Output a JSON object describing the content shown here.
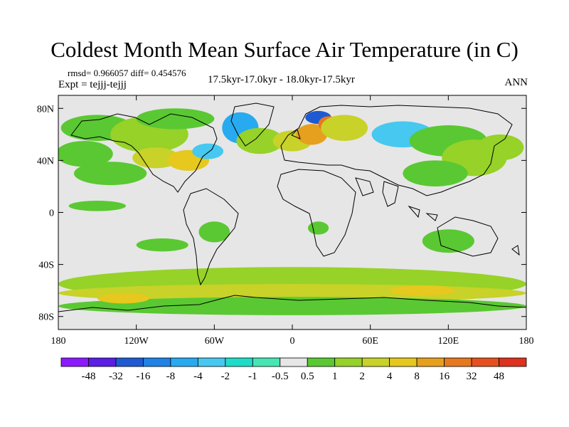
{
  "header": {
    "title": "Coldest Month Mean Surface Air Temperature (in C)",
    "stats": "rmsd= 0.966057 diff= 0.454576",
    "experiment": "Expt = tejjj-tejjj",
    "period": "17.5kyr-17.0kyr - 18.0kyr-17.5kyr",
    "season": "ANN"
  },
  "axes": {
    "lat_ticks": [
      {
        "label": "80N",
        "value": 80
      },
      {
        "label": "40N",
        "value": 40
      },
      {
        "label": "0",
        "value": 0
      },
      {
        "label": "40S",
        "value": -40
      },
      {
        "label": "80S",
        "value": -80
      }
    ],
    "lon_ticks": [
      {
        "label": "180",
        "value": -180
      },
      {
        "label": "120W",
        "value": -120
      },
      {
        "label": "60W",
        "value": -60
      },
      {
        "label": "0",
        "value": 0
      },
      {
        "label": "60E",
        "value": 60
      },
      {
        "label": "120E",
        "value": 120
      },
      {
        "label": "180",
        "value": 180
      }
    ],
    "lat_range": [
      -90,
      90
    ],
    "lon_range": [
      -180,
      180
    ]
  },
  "legend": {
    "colors": [
      "#8c1aff",
      "#5a1ee6",
      "#1e5ad2",
      "#1e82e6",
      "#28aaf0",
      "#46c8f0",
      "#1edcc8",
      "#46e6b4",
      "#e6e6e6",
      "#5ac832",
      "#96d228",
      "#c8d228",
      "#e6c81e",
      "#e6a01e",
      "#e6781e",
      "#e6501e",
      "#dc321e"
    ],
    "labels": [
      "-48",
      "-32",
      "-16",
      "-8",
      "-4",
      "-2",
      "-1",
      "-0.5",
      "0.5",
      "1",
      "2",
      "4",
      "8",
      "16",
      "32",
      "48"
    ]
  },
  "map": {
    "background_color": "#e6e6e6",
    "coastline_color": "#000000",
    "anomaly_regions": [
      {
        "lon": -150,
        "lat": 65,
        "rx": 28,
        "ry": 10,
        "color": "#5ac832"
      },
      {
        "lon": -110,
        "lat": 60,
        "rx": 30,
        "ry": 14,
        "color": "#96d228"
      },
      {
        "lon": -90,
        "lat": 72,
        "rx": 30,
        "ry": 8,
        "color": "#5ac832"
      },
      {
        "lon": -160,
        "lat": 45,
        "rx": 22,
        "ry": 10,
        "color": "#5ac832"
      },
      {
        "lon": -140,
        "lat": 30,
        "rx": 28,
        "ry": 9,
        "color": "#5ac832"
      },
      {
        "lon": -105,
        "lat": 42,
        "rx": 18,
        "ry": 8,
        "color": "#c8d228"
      },
      {
        "lon": -80,
        "lat": 40,
        "rx": 16,
        "ry": 8,
        "color": "#e6c81e"
      },
      {
        "lon": -65,
        "lat": 47,
        "rx": 12,
        "ry": 6,
        "color": "#46c8f0"
      },
      {
        "lon": -40,
        "lat": 65,
        "rx": 14,
        "ry": 12,
        "color": "#28aaf0"
      },
      {
        "lon": -25,
        "lat": 55,
        "rx": 18,
        "ry": 10,
        "color": "#96d228"
      },
      {
        "lon": 0,
        "lat": 55,
        "rx": 15,
        "ry": 8,
        "color": "#c8d228"
      },
      {
        "lon": 15,
        "lat": 60,
        "rx": 12,
        "ry": 8,
        "color": "#e6a01e"
      },
      {
        "lon": 20,
        "lat": 73,
        "rx": 10,
        "ry": 5,
        "color": "#1e5ad2"
      },
      {
        "lon": 28,
        "lat": 68,
        "rx": 8,
        "ry": 6,
        "color": "#e6781e"
      },
      {
        "lon": 40,
        "lat": 65,
        "rx": 18,
        "ry": 10,
        "color": "#c8d228"
      },
      {
        "lon": 85,
        "lat": 60,
        "rx": 24,
        "ry": 10,
        "color": "#46c8f0"
      },
      {
        "lon": 120,
        "lat": 55,
        "rx": 30,
        "ry": 12,
        "color": "#5ac832"
      },
      {
        "lon": 140,
        "lat": 42,
        "rx": 25,
        "ry": 14,
        "color": "#96d228"
      },
      {
        "lon": 110,
        "lat": 30,
        "rx": 25,
        "ry": 10,
        "color": "#5ac832"
      },
      {
        "lon": 160,
        "lat": 50,
        "rx": 18,
        "ry": 10,
        "color": "#96d228"
      },
      {
        "lon": -150,
        "lat": 5,
        "rx": 22,
        "ry": 4,
        "color": "#5ac832"
      },
      {
        "lon": -60,
        "lat": -15,
        "rx": 12,
        "ry": 8,
        "color": "#5ac832"
      },
      {
        "lon": 120,
        "lat": -22,
        "rx": 20,
        "ry": 9,
        "color": "#5ac832"
      },
      {
        "lon": 20,
        "lat": -12,
        "rx": 8,
        "ry": 5,
        "color": "#5ac832"
      },
      {
        "lon": -100,
        "lat": -25,
        "rx": 20,
        "ry": 5,
        "color": "#5ac832"
      },
      {
        "lon": 0,
        "lat": -55,
        "rx": 180,
        "ry": 13,
        "color": "#96d228"
      },
      {
        "lon": 0,
        "lat": -62,
        "rx": 180,
        "ry": 7,
        "color": "#c8d228"
      },
      {
        "lon": 0,
        "lat": -72,
        "rx": 180,
        "ry": 7,
        "color": "#5ac832"
      },
      {
        "lon": -130,
        "lat": -66,
        "rx": 20,
        "ry": 4,
        "color": "#e6c81e"
      },
      {
        "lon": 100,
        "lat": -60,
        "rx": 25,
        "ry": 4,
        "color": "#e6c81e"
      }
    ]
  }
}
